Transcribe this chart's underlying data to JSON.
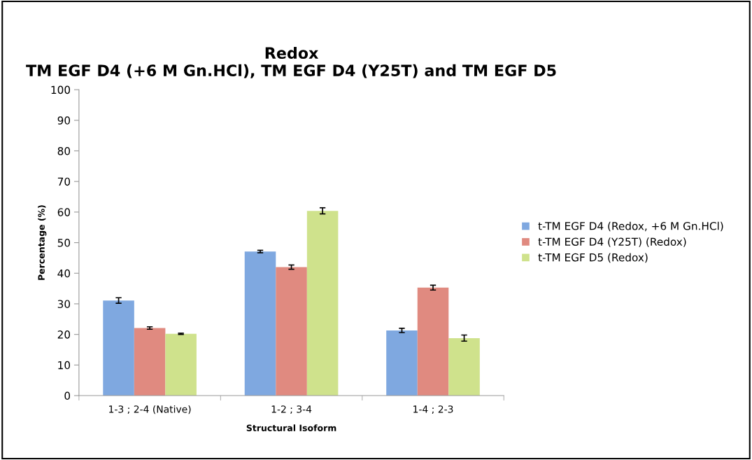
{
  "chart_data": {
    "type": "bar",
    "title": "Redox\nTM EGF D4 (+6 M Gn.HCl), TM EGF D4 (Y25T) and TM EGF D5",
    "xlabel": "Structural Isoform",
    "ylabel": "Percentage (%)",
    "categories": [
      "1-3 ; 2-4 (Native)",
      "1-2 ; 3-4",
      "1-4 ; 2-3"
    ],
    "series": [
      {
        "name": "t-TM EGF D4 (Redox, +6 M Gn.HCl)",
        "color": "#7fa8e0",
        "values": [
          31.1,
          47.1,
          21.3
        ],
        "errors": [
          0.9,
          0.4,
          0.7
        ]
      },
      {
        "name": "t-TM EGF D4 (Y25T) (Redox)",
        "color": "#e08a80",
        "values": [
          22.1,
          42.0,
          35.3
        ],
        "errors": [
          0.4,
          0.7,
          0.8
        ]
      },
      {
        "name": "t-TM EGF D5 (Redox)",
        "color": "#cfe28c",
        "values": [
          20.2,
          60.4,
          18.8
        ],
        "errors": [
          0.2,
          1.0,
          1.0
        ]
      }
    ],
    "ylim": [
      0,
      100
    ],
    "yticks": [
      0,
      10,
      20,
      30,
      40,
      50,
      60,
      70,
      80,
      90,
      100
    ],
    "grid": false,
    "legend": "right"
  }
}
